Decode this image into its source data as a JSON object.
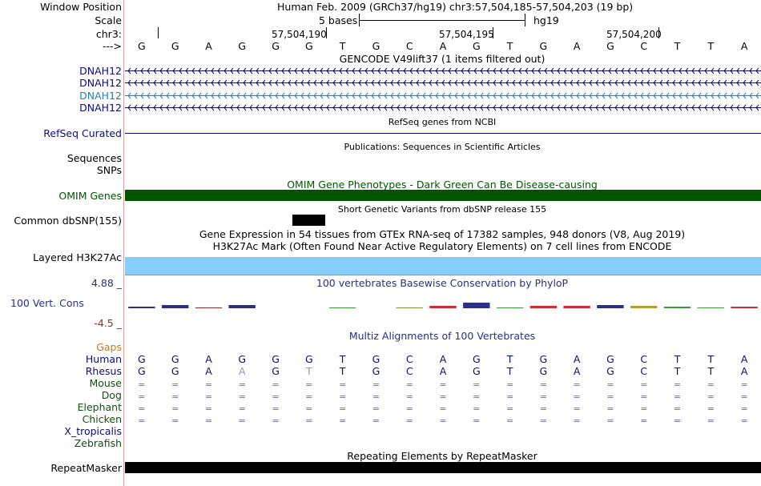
{
  "header": {
    "window_position_label": "Window Position",
    "window_position_value": "Human Feb. 2009 (GRCh37/hg19)   chr3:57,504,185-57,504,203 (19 bp)",
    "scale_label": "Scale",
    "scale_value": "5 bases",
    "scale_assembly": "hg19",
    "chrom_label": "chr3:",
    "coord_ticks": [
      "57,504,190",
      "57,504,195",
      "57,504,200"
    ],
    "arrow_label": "--->"
  },
  "sequence": [
    "G",
    "G",
    "A",
    "G",
    "G",
    "G",
    "T",
    "G",
    "C",
    "A",
    "G",
    "T",
    "G",
    "A",
    "G",
    "C",
    "T",
    "T",
    "A"
  ],
  "tracks": {
    "gencode_title": "GENCODE V49lift37 (1 items filtered out)",
    "gencode_items": [
      "DNAH12",
      "DNAH12",
      "DNAH12",
      "DNAH12"
    ],
    "refseq_label": "RefSeq Curated",
    "refseq_title": "RefSeq genes from NCBI",
    "pubs_title": "Publications: Sequences in Scientific Articles",
    "sequences_label": "Sequences",
    "snps_label": "SNPs",
    "omim_title": "OMIM Gene Phenotypes - Dark Green Can Be Disease-causing",
    "omim_label": "OMIM Genes",
    "dbsnp_title": "Short Genetic Variants from dbSNP release 155",
    "dbsnp_label": "Common dbSNP(155)",
    "gtex_title": "Gene Expression in 54 tissues from GTEx RNA-seq of 17382 samples, 948 donors (V8, Aug 2019)",
    "h3k27ac_title": "H3K27Ac Mark (Often Found Near Active Regulatory Elements) on 7 cell lines from ENCODE",
    "h3k27ac_label": "Layered H3K27Ac",
    "cons_max": "4.88 _",
    "cons_title": "100 vertebrates Basewise Conservation by PhyloP",
    "cons_label": "100 Vert. Cons",
    "cons_min": "-4.5 _",
    "multiz_title": "Multiz Alignments of 100 Vertebrates",
    "gaps_label": "Gaps",
    "species": [
      "Human",
      "Rhesus",
      "Mouse",
      "Dog",
      "Elephant",
      "Chicken",
      "X_tropicalis",
      "Zebrafish"
    ],
    "rhesus_seq": [
      "G",
      "G",
      "A",
      "A",
      "G",
      "T",
      "T",
      "G",
      "C",
      "A",
      "G",
      "T",
      "G",
      "A",
      "G",
      "C",
      "T",
      "T",
      "A"
    ],
    "rhesus_diff": [
      false,
      false,
      false,
      true,
      false,
      true,
      false,
      false,
      false,
      false,
      false,
      false,
      false,
      false,
      false,
      false,
      false,
      false,
      false
    ],
    "eq_symbol": "=",
    "repeat_title": "Repeating Elements by RepeatMasker",
    "repeat_label": "RepeatMasker"
  },
  "colors": {
    "gene_blue": "#0c0c78",
    "gene_teal": "#2a7fb0",
    "omim_green": "#005500",
    "h3k27ac_blue": "#87cefa",
    "cons_blue": "#2d2d8c",
    "cons_red": "#8c2d2d",
    "gaps_orange": "#cc7a00",
    "species_green": "#105010"
  }
}
